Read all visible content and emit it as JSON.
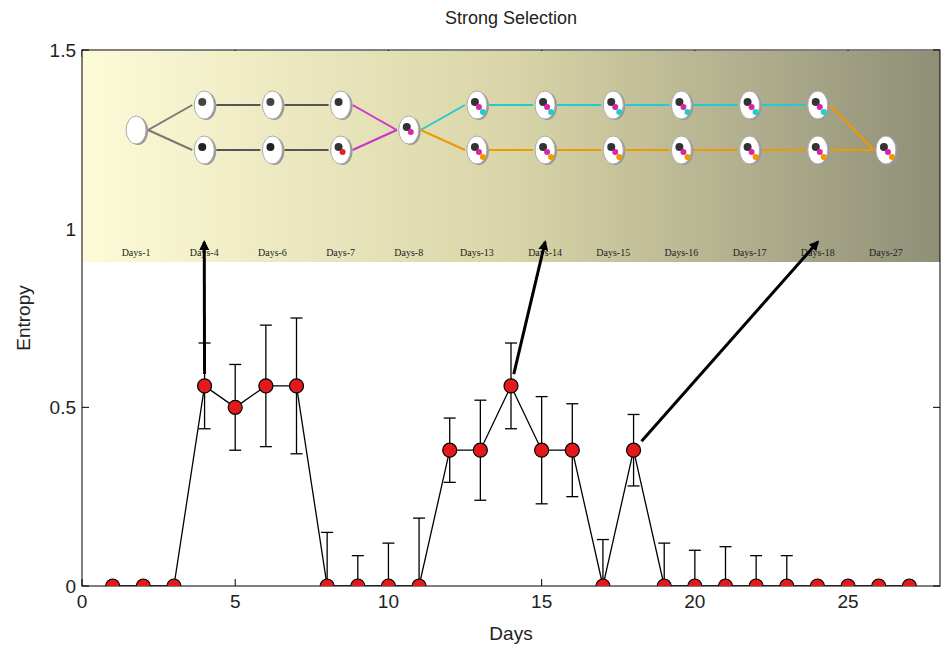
{
  "chart_data": {
    "type": "line",
    "title": "Strong Selection",
    "x_label": "Days",
    "y_label": "Entropy",
    "x": [
      1,
      2,
      3,
      4,
      5,
      6,
      7,
      8,
      9,
      10,
      11,
      12,
      13,
      14,
      15,
      16,
      17,
      18,
      19,
      20,
      21,
      22,
      23,
      24,
      25,
      26,
      27
    ],
    "xlim": [
      0,
      28
    ],
    "ylim": [
      0,
      1.5
    ],
    "xticks": [
      0,
      5,
      10,
      15,
      20,
      25
    ],
    "yticks": [
      0,
      0.5,
      1,
      1.5
    ],
    "grid": false,
    "series": [
      {
        "color": "#e31a1c",
        "marker": "circle",
        "values": [
          0,
          0,
          0,
          0.56,
          0.5,
          0.56,
          0.56,
          0,
          0,
          0,
          0,
          0.38,
          0.38,
          0.56,
          0.38,
          0.38,
          0,
          0.38,
          0,
          0,
          0,
          0,
          0,
          0,
          0,
          0,
          0
        ],
        "errors": [
          0,
          0,
          0,
          0.12,
          0.12,
          0.17,
          0.19,
          0.15,
          0.085,
          0.12,
          0.19,
          0.09,
          0.14,
          0.12,
          0.15,
          0.13,
          0.13,
          0.1,
          0.12,
          0.1,
          0.11,
          0.085,
          0.085,
          0,
          0,
          0,
          0
        ]
      }
    ],
    "annotations": [
      "Days-1",
      "Days-4",
      "Days-6",
      "Days-7",
      "Days-8",
      "Days-13",
      "Days-14",
      "Days-15",
      "Days-16",
      "Days-17",
      "Days-18",
      "Days-27"
    ]
  }
}
